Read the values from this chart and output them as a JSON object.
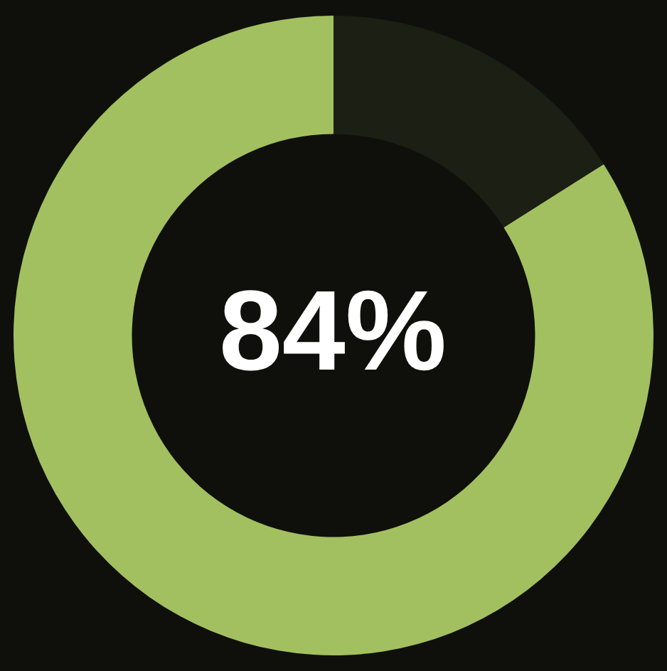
{
  "chart_data": {
    "type": "donut",
    "categories": [
      null,
      null
    ],
    "values": [
      84,
      16
    ],
    "colors": [
      "#a3c060",
      "#1c1f14"
    ],
    "annotations": [
      "84%"
    ]
  }
}
